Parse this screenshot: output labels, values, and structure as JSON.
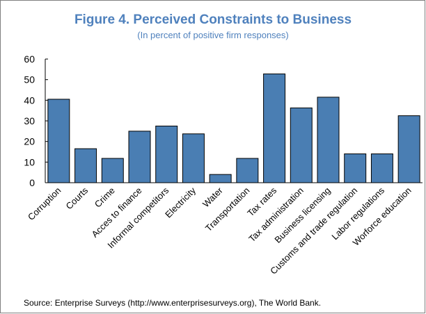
{
  "chart_data": {
    "type": "bar",
    "title": "Figure 4. Perceived Constraints to Business",
    "subtitle": "(In percent of positive firm responses)",
    "categories": [
      "Corruption",
      "Courts",
      "Crime",
      "Acces to finance",
      "Informal competitors",
      "Electricity",
      "Water",
      "Transportation",
      "Tax rates",
      "Tax administration",
      "Business licensing",
      "Customs and trade regulation",
      "Labor regulations",
      "Worforce education"
    ],
    "values": [
      40.5,
      16.5,
      11.8,
      25,
      27.5,
      23.7,
      4,
      11.8,
      52.8,
      36.3,
      41.5,
      14,
      14,
      32.5
    ],
    "ylim": [
      0,
      60
    ],
    "yticks": [
      0,
      10,
      20,
      30,
      40,
      50,
      60
    ],
    "bar_color": "#4a7eb3",
    "grid": false,
    "legend": "none"
  },
  "source": "Source: Enterprise Surveys (http://www.enterprisesurveys.org), The World Bank."
}
